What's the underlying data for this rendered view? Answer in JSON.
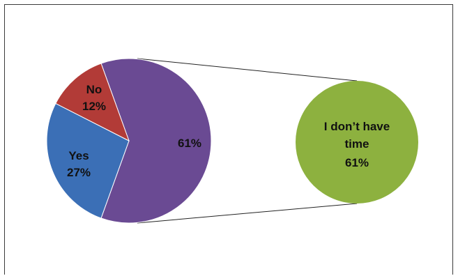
{
  "chart_data": {
    "type": "pie",
    "subtype": "pie-of-pie",
    "slices": [
      {
        "label": "No",
        "value": 12,
        "value_text": "12%",
        "color": "#b23b37"
      },
      {
        "label": "Yes",
        "value": 27,
        "value_text": "27%",
        "color": "#3b6fb6"
      },
      {
        "label": "",
        "value": 61,
        "value_text": "61%",
        "color": "#6a4a93"
      }
    ],
    "breakout": [
      {
        "label": "I don’t have time",
        "label_line1": "I don’t have",
        "label_line2": "time",
        "value": 61,
        "value_text": "61%",
        "color": "#8db13f"
      }
    ],
    "title": "",
    "legend": "none"
  }
}
